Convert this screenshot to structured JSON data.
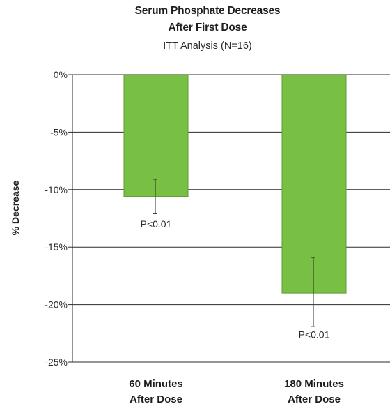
{
  "chart_data": {
    "type": "bar",
    "title": "Serum Phosphate Decreases",
    "title_line2": "After First Dose",
    "subtitle": "ITT Analysis (N=16)",
    "ylabel": "% Decrease",
    "ylim": [
      -25,
      0
    ],
    "yticks": [
      0,
      -5,
      -10,
      -15,
      -20,
      -25
    ],
    "ytick_labels": [
      "0%",
      "-5%",
      "-10%",
      "-15%",
      "-20%",
      "-25%"
    ],
    "categories": [
      "60 Minutes After Dose",
      "180 Minutes After Dose"
    ],
    "category_lines": [
      [
        "60 Minutes",
        "After Dose"
      ],
      [
        "180 Minutes",
        "After Dose"
      ]
    ],
    "values": [
      -10.6,
      -19.0
    ],
    "error_bars": [
      [
        -12.1,
        -9.1
      ],
      [
        -21.9,
        -15.9
      ]
    ],
    "annotations": [
      "P<0.01",
      "P<0.01"
    ],
    "annotation_values": [
      -13.0,
      -22.6
    ],
    "grid": true,
    "bar_color": "#78c044",
    "bar_edge_color": "#5f9a33"
  }
}
